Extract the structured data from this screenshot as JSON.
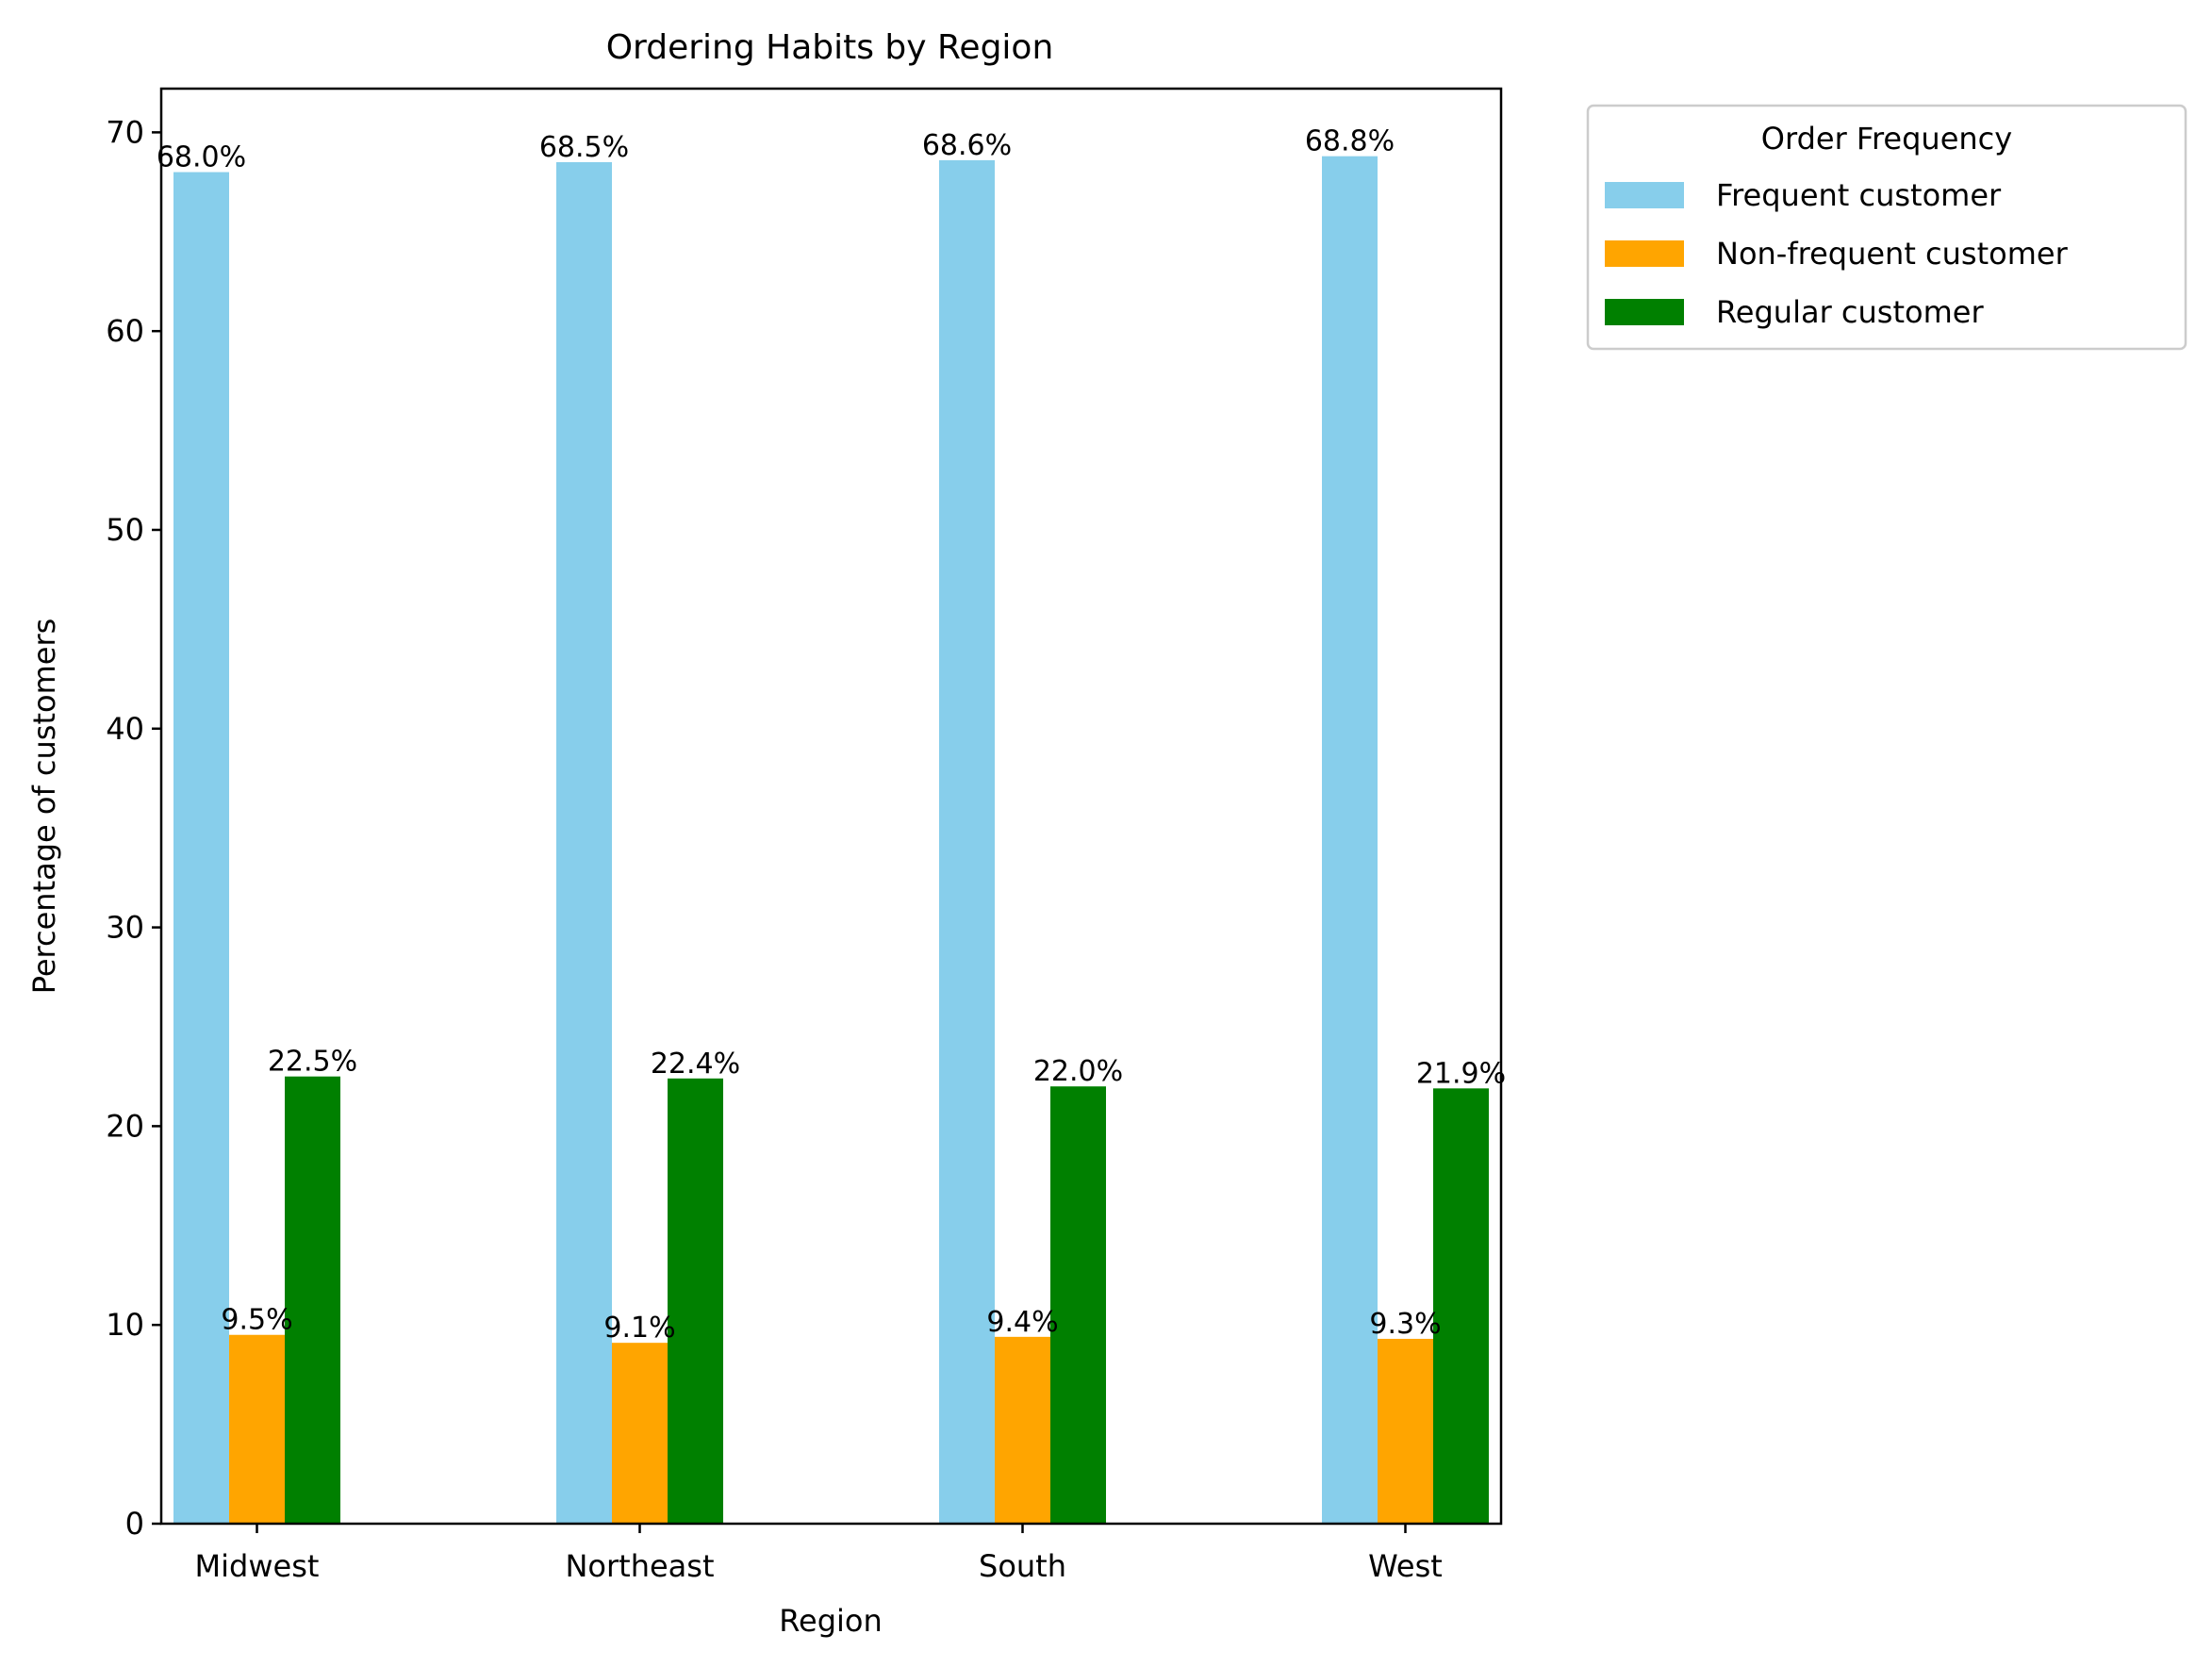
{
  "chart_data": {
    "type": "bar",
    "title": "Ordering Habits by Region",
    "xlabel": "Region",
    "ylabel": "Percentage of customers",
    "categories": [
      "Midwest",
      "Northeast",
      "South",
      "West"
    ],
    "ylim": [
      0,
      72.2
    ],
    "yticks": [
      0,
      10,
      20,
      30,
      40,
      50,
      60,
      70
    ],
    "grid": false,
    "series": [
      {
        "name": "Frequent customer",
        "color": "#87ceeb",
        "values": [
          68.0,
          68.5,
          68.6,
          68.8
        ],
        "labels": [
          "68.0%",
          "68.5%",
          "68.6%",
          "68.8%"
        ]
      },
      {
        "name": "Non-frequent customer",
        "color": "#ffa500",
        "values": [
          9.5,
          9.1,
          9.4,
          9.3
        ],
        "labels": [
          "9.5%",
          "9.1%",
          "9.4%",
          "9.3%"
        ]
      },
      {
        "name": "Regular customer",
        "color": "#008000",
        "values": [
          22.5,
          22.4,
          22.0,
          21.9
        ],
        "labels": [
          "22.5%",
          "22.4%",
          "22.0%",
          "21.9%"
        ]
      }
    ],
    "legend": {
      "title": "Order Frequency",
      "placement": "outside-right-top"
    }
  }
}
